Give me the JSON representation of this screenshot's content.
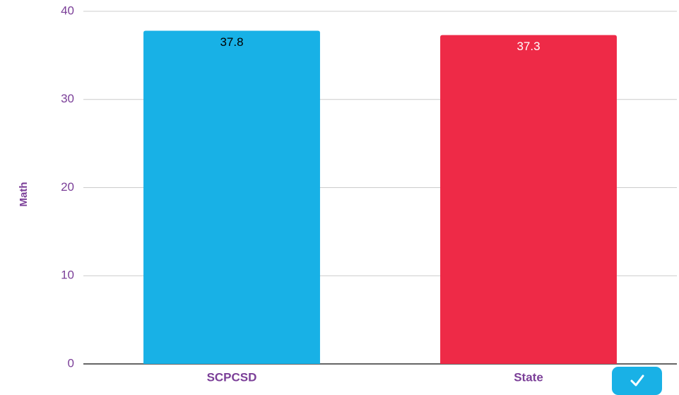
{
  "chart_data": {
    "type": "bar",
    "categories": [
      "SCPCSD",
      "State"
    ],
    "values": [
      37.8,
      37.3
    ],
    "data_labels": [
      "37.8",
      "37.3"
    ],
    "bar_colors": [
      "#18b1e6",
      "#ee2a47"
    ],
    "data_label_colors": [
      "#000000",
      "#ffffff"
    ],
    "title": "",
    "xlabel": "",
    "ylabel": "Math",
    "ylim": [
      0,
      40
    ],
    "yticks": [
      0,
      10,
      20,
      30,
      40
    ],
    "ytick_labels": [
      "0",
      "10",
      "20",
      "30",
      "40"
    ],
    "grid": true,
    "legend": "none",
    "axis_label_color": "#7b3f98",
    "gridline_color": "#cccccc"
  },
  "corner_button": {
    "icon": "checkmark-icon",
    "color": "#19b1e6"
  }
}
